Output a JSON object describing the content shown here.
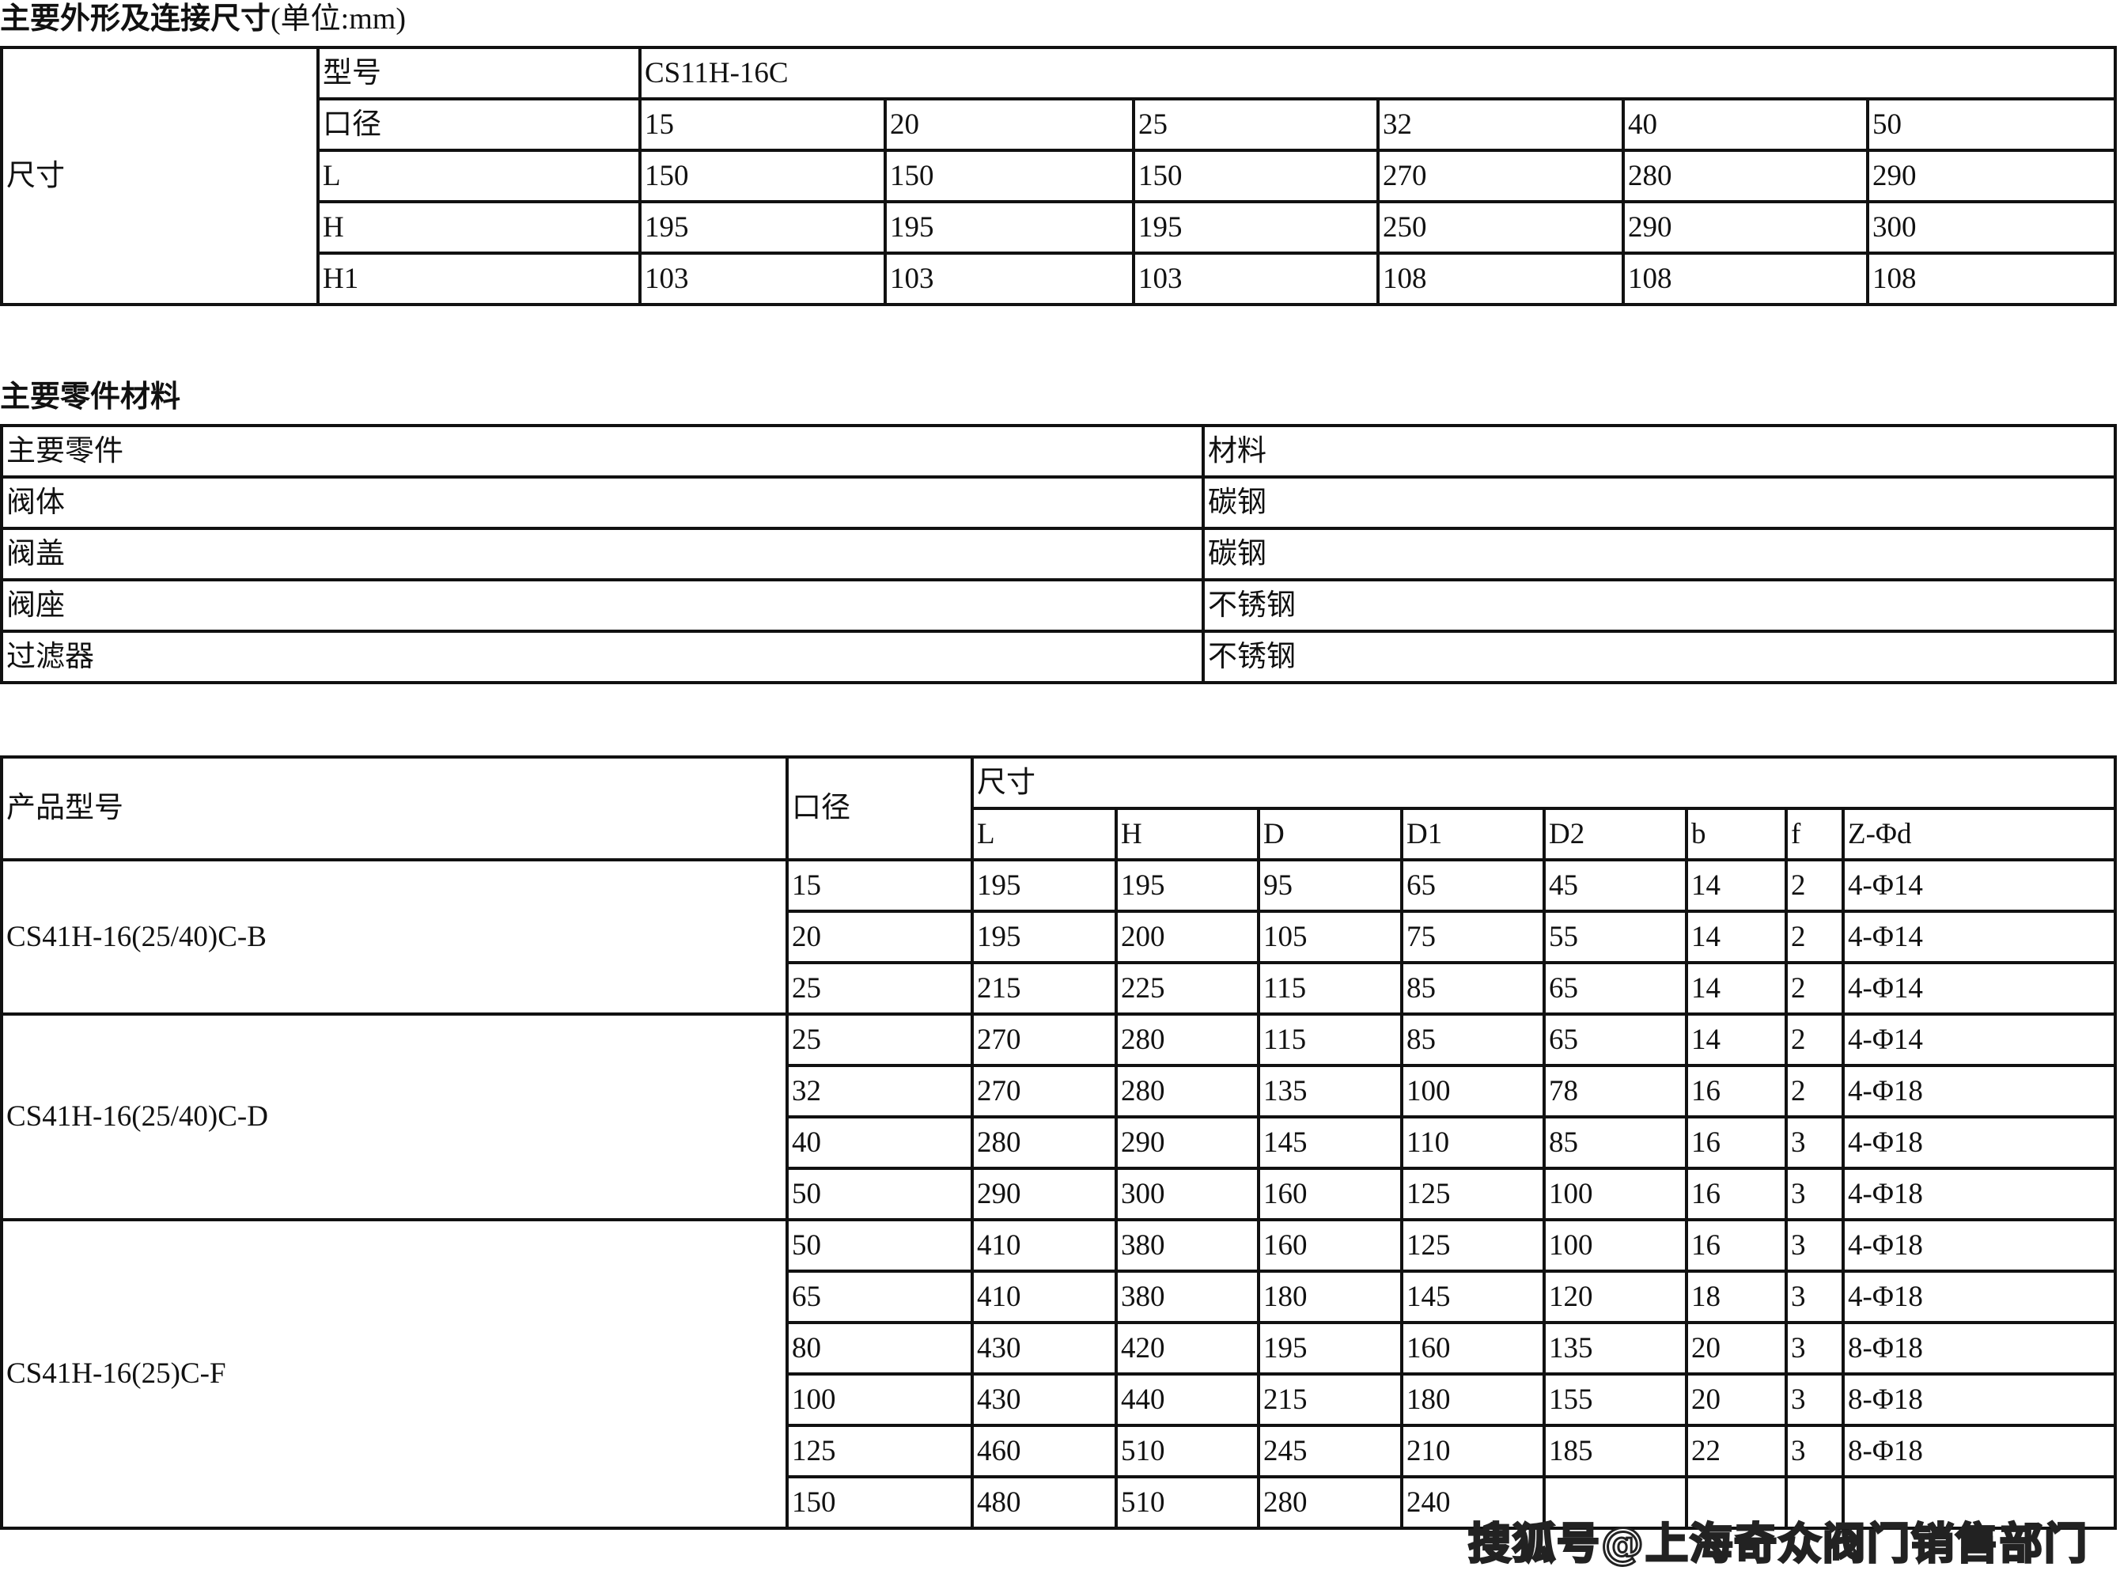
{
  "section1": {
    "title": "主要外形及连接尺寸",
    "unit": "(单位:mm)",
    "row_group_label": "尺寸",
    "model_label": "型号",
    "model_value": "CS11H-16C",
    "rows": [
      {
        "label": "口径",
        "values": [
          "15",
          "20",
          "25",
          "32",
          "40",
          "50"
        ]
      },
      {
        "label": "L",
        "values": [
          "150",
          "150",
          "150",
          "270",
          "280",
          "290"
        ]
      },
      {
        "label": "H",
        "values": [
          "195",
          "195",
          "195",
          "250",
          "290",
          "300"
        ]
      },
      {
        "label": "H1",
        "values": [
          "103",
          "103",
          "103",
          "108",
          "108",
          "108"
        ]
      }
    ]
  },
  "section2": {
    "title": "主要零件材料",
    "headers": [
      "主要零件",
      "材料"
    ],
    "rows": [
      [
        "阀体",
        "碳钢"
      ],
      [
        "阀盖",
        "碳钢"
      ],
      [
        "阀座",
        "不锈钢"
      ],
      [
        "过滤器",
        "不锈钢"
      ]
    ]
  },
  "section3": {
    "header_model": "产品型号",
    "header_size": "口径",
    "header_dims": "尺寸",
    "dim_columns": [
      "L",
      "H",
      "D",
      "D1",
      "D2",
      "b",
      "f",
      "Z-Φd"
    ],
    "groups": [
      {
        "model": "CS41H-16(25/40)C-B",
        "rows": [
          [
            "15",
            "195",
            "195",
            "95",
            "65",
            "45",
            "14",
            "2",
            "4-Φ14"
          ],
          [
            "20",
            "195",
            "200",
            "105",
            "75",
            "55",
            "14",
            "2",
            "4-Φ14"
          ],
          [
            "25",
            "215",
            "225",
            "115",
            "85",
            "65",
            "14",
            "2",
            "4-Φ14"
          ]
        ]
      },
      {
        "model": "CS41H-16(25/40)C-D",
        "rows": [
          [
            "25",
            "270",
            "280",
            "115",
            "85",
            "65",
            "14",
            "2",
            "4-Φ14"
          ],
          [
            "32",
            "270",
            "280",
            "135",
            "100",
            "78",
            "16",
            "2",
            "4-Φ18"
          ],
          [
            "40",
            "280",
            "290",
            "145",
            "110",
            "85",
            "16",
            "3",
            "4-Φ18"
          ],
          [
            "50",
            "290",
            "300",
            "160",
            "125",
            "100",
            "16",
            "3",
            "4-Φ18"
          ]
        ]
      },
      {
        "model": "CS41H-16(25)C-F",
        "rows": [
          [
            "50",
            "410",
            "380",
            "160",
            "125",
            "100",
            "16",
            "3",
            "4-Φ18"
          ],
          [
            "65",
            "410",
            "380",
            "180",
            "145",
            "120",
            "18",
            "3",
            "4-Φ18"
          ],
          [
            "80",
            "430",
            "420",
            "195",
            "160",
            "135",
            "20",
            "3",
            "8-Φ18"
          ],
          [
            "100",
            "430",
            "440",
            "215",
            "180",
            "155",
            "20",
            "3",
            "8-Φ18"
          ],
          [
            "125",
            "460",
            "510",
            "245",
            "210",
            "185",
            "22",
            "3",
            "8-Φ18"
          ],
          [
            "150",
            "480",
            "510",
            "280",
            "240",
            "",
            "",
            "",
            ""
          ]
        ]
      }
    ]
  },
  "watermark": "搜狐号@上海奇众阀门销售部门"
}
